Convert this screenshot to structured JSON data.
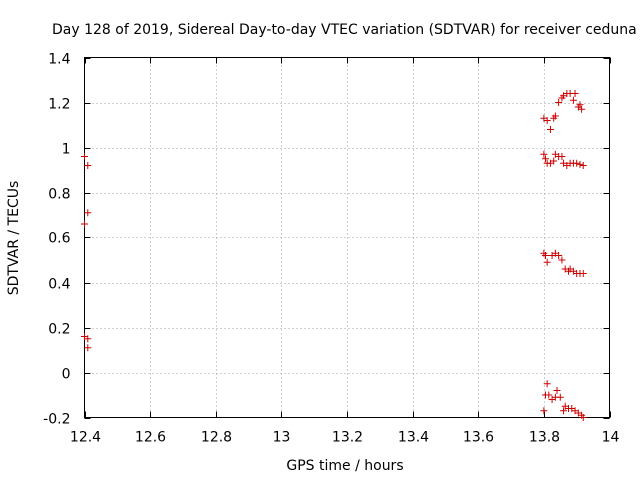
{
  "chart_data": {
    "type": "scatter",
    "title": "Day 128 of 2019, Sidereal Day-to-day VTEC variation (SDTVAR) for receiver ceduna",
    "xlabel": "GPS time / hours",
    "ylabel": "SDTVAR / TECUs",
    "xlim": [
      12.4,
      14
    ],
    "ylim": [
      -0.2,
      1.4
    ],
    "x_ticks": [
      12.4,
      12.6,
      12.8,
      13,
      13.2,
      13.4,
      13.6,
      13.8,
      14
    ],
    "x_tick_labels": [
      "12.4",
      "12.6",
      "12.8",
      "13",
      "13.2",
      "13.4",
      "13.6",
      "13.8",
      "14"
    ],
    "y_ticks": [
      -0.2,
      0,
      0.2,
      0.4,
      0.6,
      0.8,
      1,
      1.2,
      1.4
    ],
    "y_tick_labels": [
      "-0.2",
      "0",
      "0.2",
      "0.4",
      "0.6",
      "0.8",
      "1",
      "1.2",
      "1.4"
    ],
    "grid": true,
    "marker": "plus",
    "marker_color": "#cc0000",
    "series": [
      {
        "name": "SDTVAR",
        "points": [
          [
            12.4,
            0.96
          ],
          [
            12.41,
            0.92
          ],
          [
            12.4,
            0.66
          ],
          [
            12.41,
            0.71
          ],
          [
            12.4,
            0.16
          ],
          [
            12.41,
            0.15
          ],
          [
            12.41,
            0.11
          ],
          [
            13.8,
            1.13
          ],
          [
            13.81,
            1.12
          ],
          [
            13.82,
            1.08
          ],
          [
            13.83,
            1.13
          ],
          [
            13.835,
            1.14
          ],
          [
            13.845,
            1.2
          ],
          [
            13.855,
            1.22
          ],
          [
            13.86,
            1.23
          ],
          [
            13.87,
            1.24
          ],
          [
            13.88,
            1.24
          ],
          [
            13.89,
            1.21
          ],
          [
            13.895,
            1.24
          ],
          [
            13.905,
            1.18
          ],
          [
            13.91,
            1.19
          ],
          [
            13.915,
            1.17
          ],
          [
            13.8,
            0.97
          ],
          [
            13.805,
            0.95
          ],
          [
            13.81,
            0.93
          ],
          [
            13.82,
            0.93
          ],
          [
            13.83,
            0.94
          ],
          [
            13.835,
            0.97
          ],
          [
            13.845,
            0.96
          ],
          [
            13.855,
            0.96
          ],
          [
            13.86,
            0.93
          ],
          [
            13.87,
            0.92
          ],
          [
            13.88,
            0.93
          ],
          [
            13.89,
            0.93
          ],
          [
            13.9,
            0.93
          ],
          [
            13.91,
            0.925
          ],
          [
            13.92,
            0.92
          ],
          [
            13.8,
            0.53
          ],
          [
            13.805,
            0.52
          ],
          [
            13.81,
            0.49
          ],
          [
            13.825,
            0.52
          ],
          [
            13.835,
            0.53
          ],
          [
            13.845,
            0.52
          ],
          [
            13.855,
            0.5
          ],
          [
            13.865,
            0.46
          ],
          [
            13.875,
            0.45
          ],
          [
            13.88,
            0.46
          ],
          [
            13.89,
            0.45
          ],
          [
            13.9,
            0.44
          ],
          [
            13.91,
            0.44
          ],
          [
            13.92,
            0.44
          ],
          [
            13.8,
            -0.17
          ],
          [
            13.805,
            -0.1
          ],
          [
            13.81,
            -0.05
          ],
          [
            13.815,
            -0.1
          ],
          [
            13.825,
            -0.12
          ],
          [
            13.835,
            -0.11
          ],
          [
            13.84,
            -0.08
          ],
          [
            13.85,
            -0.11
          ],
          [
            13.86,
            -0.17
          ],
          [
            13.865,
            -0.15
          ],
          [
            13.875,
            -0.16
          ],
          [
            13.885,
            -0.16
          ],
          [
            13.895,
            -0.17
          ],
          [
            13.905,
            -0.18
          ],
          [
            13.915,
            -0.19
          ],
          [
            13.92,
            -0.2
          ]
        ]
      }
    ]
  }
}
